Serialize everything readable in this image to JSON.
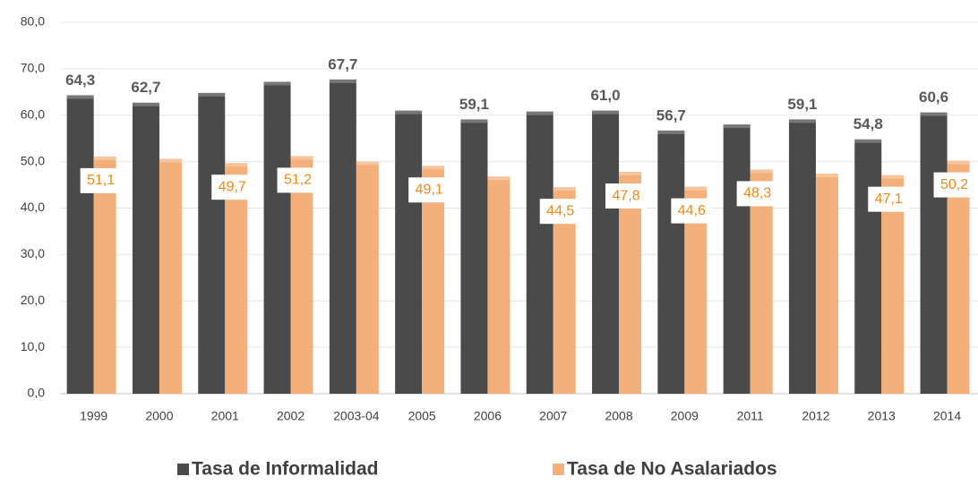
{
  "chart_data": {
    "type": "bar",
    "categories": [
      "1999",
      "2000",
      "2001",
      "2002",
      "2003-04",
      "2005",
      "2006",
      "2007",
      "2008",
      "2009",
      "2011",
      "2012",
      "2013",
      "2014"
    ],
    "series": [
      {
        "name": "Tasa de Informalidad",
        "color": "#4a4a4a",
        "values": [
          64.3,
          62.7,
          64.8,
          67.2,
          67.7,
          61.0,
          59.1,
          60.8,
          61.0,
          56.7,
          58.0,
          59.1,
          54.8,
          60.6
        ],
        "value_labels": [
          "64,3",
          "62,7",
          null,
          null,
          "67,7",
          null,
          "59,1",
          null,
          "61,0",
          "56,7",
          null,
          "59,1",
          "54,8",
          "60,6"
        ]
      },
      {
        "name": "Tasa de No Asalariados",
        "color": "#f4b07a",
        "values": [
          51.1,
          50.6,
          49.7,
          51.2,
          50.0,
          49.1,
          46.8,
          44.5,
          47.8,
          44.6,
          48.3,
          47.4,
          47.1,
          50.2
        ],
        "value_labels": [
          "51,1",
          null,
          "49,7",
          "51,2",
          null,
          "49,1",
          null,
          "44,5",
          "47,8",
          "44,6",
          "48,3",
          null,
          "47,1",
          "50,2"
        ]
      }
    ],
    "ylim": [
      0,
      80
    ],
    "yticks": [
      {
        "value": 0,
        "label": "0,0"
      },
      {
        "value": 10,
        "label": "10,0"
      },
      {
        "value": 20,
        "label": "20,0"
      },
      {
        "value": 30,
        "label": "30,0"
      },
      {
        "value": 40,
        "label": "40,0"
      },
      {
        "value": 50,
        "label": "50,0"
      },
      {
        "value": 60,
        "label": "60,0"
      },
      {
        "value": 70,
        "label": "70,0"
      },
      {
        "value": 80,
        "label": "80,0"
      }
    ],
    "grid": true,
    "legend": "bottom"
  }
}
